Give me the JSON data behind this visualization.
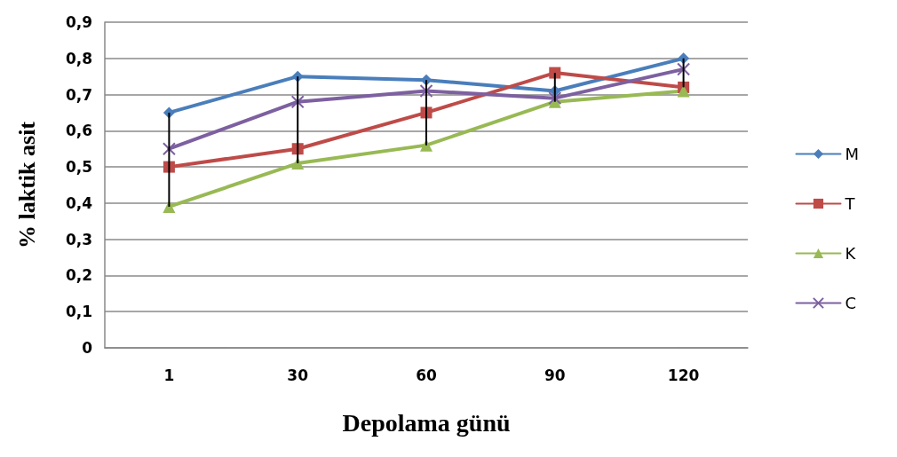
{
  "chart_data": {
    "type": "line",
    "xlabel": "Depolama günü",
    "ylabel": "% laktik asit",
    "categories": [
      "1",
      "30",
      "60",
      "90",
      "120"
    ],
    "series": [
      {
        "type": "bar",
        "color": "#000000",
        "base": [
          0.39,
          0.51,
          0.56,
          0.68,
          0.72
        ],
        "values": [
          0.26,
          0.24,
          0.18,
          0.08,
          0.08
        ]
      },
      {
        "name": "M",
        "color": "#4a7ebb",
        "marker": "diamond",
        "values": [
          0.65,
          0.75,
          0.74,
          0.71,
          0.8
        ]
      },
      {
        "name": "T",
        "color": "#be4b48",
        "marker": "square",
        "values": [
          0.5,
          0.55,
          0.65,
          0.76,
          0.72
        ]
      },
      {
        "name": "K",
        "color": "#98b954",
        "marker": "triangle",
        "values": [
          0.39,
          0.51,
          0.56,
          0.68,
          0.71
        ]
      },
      {
        "name": "C",
        "color": "#7d60a0",
        "marker": "cross",
        "values": [
          0.55,
          0.68,
          0.71,
          0.69,
          0.77
        ]
      }
    ],
    "ylim": [
      0,
      0.9
    ],
    "yticks": [
      0,
      {
        "value": 0.1,
        "label": "0,1"
      },
      {
        "value": 0.2,
        "label": "0,2"
      },
      {
        "value": 0.3,
        "label": "0,3"
      },
      {
        "value": 0.4,
        "label": "0,4"
      },
      {
        "value": 0.5,
        "label": "0,5"
      },
      {
        "value": 0.6,
        "label": "0,6"
      },
      {
        "value": 0.7,
        "label": "0,7"
      },
      {
        "value": 0.8,
        "label": "0,8"
      },
      {
        "value": 0.9,
        "label": "0,9"
      }
    ],
    "grid": "y",
    "legend": "right",
    "line_style": "solid"
  }
}
